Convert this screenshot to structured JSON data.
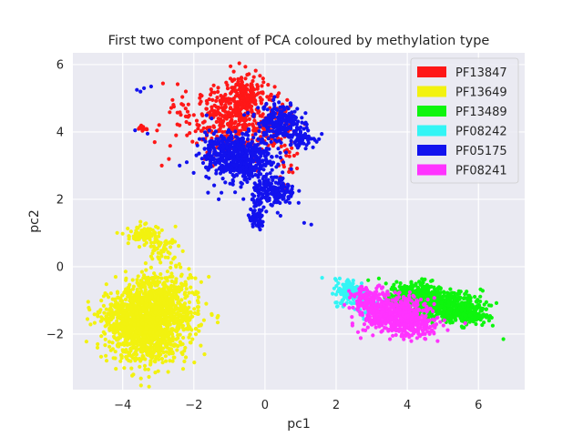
{
  "chart_data": {
    "type": "scatter",
    "title": "First two component of PCA coloured by methylation type",
    "xlabel": "pc1",
    "ylabel": "pc2",
    "xlim": [
      -5.4,
      7.3
    ],
    "ylim": [
      -3.65,
      6.35
    ],
    "xticks": [
      -4,
      -2,
      0,
      2,
      4,
      6
    ],
    "yticks": [
      -2,
      0,
      2,
      4,
      6
    ],
    "x_tick_labels": [
      "−4",
      "−2",
      "0",
      "2",
      "4",
      "6"
    ],
    "y_tick_labels": [
      "−2",
      "0",
      "2",
      "4",
      "6"
    ],
    "grid": true,
    "legend_position": "top-right",
    "series": [
      {
        "name": "PF13847",
        "color": "#ff1717",
        "clusters": [
          {
            "cx": -1.0,
            "cy": 4.3,
            "sx": 0.45,
            "sy": 0.55,
            "n": 320
          },
          {
            "cx": -0.6,
            "cy": 5.0,
            "sx": 0.3,
            "sy": 0.35,
            "n": 180
          },
          {
            "cx": 0.2,
            "cy": 4.2,
            "sx": 0.35,
            "sy": 0.45,
            "n": 120
          },
          {
            "cx": -2.2,
            "cy": 4.3,
            "sx": 0.45,
            "sy": 0.4,
            "n": 35
          },
          {
            "cx": -3.5,
            "cy": 4.1,
            "sx": 0.1,
            "sy": 0.05,
            "n": 10
          },
          {
            "cx": 0.6,
            "cy": 3.0,
            "sx": 0.15,
            "sy": 0.3,
            "n": 20
          }
        ],
        "points": [
          [
            -2.9,
            3.0
          ],
          [
            -2.7,
            3.2
          ],
          [
            -3.1,
            3.7
          ],
          [
            -2.5,
            3.9
          ],
          [
            -2.3,
            4.8
          ],
          [
            -1.8,
            4.9
          ],
          [
            -1.7,
            3.2
          ],
          [
            -0.5,
            5.7
          ],
          [
            0.7,
            2.9
          ],
          [
            0.6,
            3.3
          ],
          [
            -2.4,
            4.2
          ],
          [
            -2.0,
            4.5
          ]
        ]
      },
      {
        "name": "PF13649",
        "color": "#f2f20f",
        "clusters": [
          {
            "cx": -3.3,
            "cy": -1.7,
            "sx": 0.55,
            "sy": 0.55,
            "n": 1300
          },
          {
            "cx": -2.9,
            "cy": -0.9,
            "sx": 0.4,
            "sy": 0.5,
            "n": 300
          },
          {
            "cx": -3.4,
            "cy": 0.95,
            "sx": 0.25,
            "sy": 0.15,
            "n": 90
          },
          {
            "cx": -2.9,
            "cy": 0.55,
            "sx": 0.2,
            "sy": 0.15,
            "n": 40
          },
          {
            "cx": -4.1,
            "cy": -1.5,
            "sx": 0.3,
            "sy": 0.3,
            "n": 80
          },
          {
            "cx": -2.1,
            "cy": -1.4,
            "sx": 0.3,
            "sy": 0.3,
            "n": 40
          }
        ],
        "points": [
          [
            -4.6,
            -1.5
          ],
          [
            -4.7,
            -1.4
          ],
          [
            -4.4,
            -0.9
          ],
          [
            -4.2,
            -0.3
          ],
          [
            -2.5,
            0.0
          ],
          [
            -1.9,
            -1.4
          ],
          [
            -1.5,
            -1.4
          ],
          [
            -1.7,
            -2.6
          ],
          [
            -3.0,
            -3.1
          ],
          [
            -3.7,
            -3.2
          ]
        ]
      },
      {
        "name": "PF13489",
        "color": "#0ef50e",
        "clusters": [
          {
            "cx": 5.0,
            "cy": -1.15,
            "sx": 0.55,
            "sy": 0.2,
            "n": 500
          },
          {
            "cx": 4.2,
            "cy": -0.85,
            "sx": 0.35,
            "sy": 0.2,
            "n": 260
          },
          {
            "cx": 5.7,
            "cy": -1.45,
            "sx": 0.3,
            "sy": 0.15,
            "n": 140
          }
        ],
        "points": [
          [
            6.7,
            -2.15
          ],
          [
            6.3,
            -1.6
          ],
          [
            6.4,
            -1.75
          ],
          [
            3.2,
            -0.35
          ],
          [
            2.9,
            -0.4
          ],
          [
            3.7,
            -0.45
          ],
          [
            3.4,
            -0.5
          ]
        ]
      },
      {
        "name": "PF08242",
        "color": "#33f5f5",
        "clusters": [
          {
            "cx": 2.45,
            "cy": -0.75,
            "sx": 0.25,
            "sy": 0.2,
            "n": 160
          },
          {
            "cx": 2.9,
            "cy": -1.15,
            "sx": 0.2,
            "sy": 0.15,
            "n": 50
          }
        ],
        "points": [
          [
            1.9,
            -0.8
          ],
          [
            2.0,
            -0.4
          ],
          [
            3.1,
            -1.3
          ],
          [
            2.1,
            -0.35
          ]
        ]
      },
      {
        "name": "PF05175",
        "color": "#1212ee",
        "clusters": [
          {
            "cx": -0.75,
            "cy": 3.25,
            "sx": 0.45,
            "sy": 0.35,
            "n": 520
          },
          {
            "cx": 0.4,
            "cy": 4.3,
            "sx": 0.3,
            "sy": 0.3,
            "n": 220
          },
          {
            "cx": 0.25,
            "cy": 2.2,
            "sx": 0.3,
            "sy": 0.22,
            "n": 200
          },
          {
            "cx": -0.25,
            "cy": 1.4,
            "sx": 0.12,
            "sy": 0.15,
            "n": 60
          },
          {
            "cx": -1.3,
            "cy": 3.4,
            "sx": 0.25,
            "sy": 0.3,
            "n": 80
          },
          {
            "cx": 1.0,
            "cy": 3.85,
            "sx": 0.2,
            "sy": 0.15,
            "n": 60
          }
        ],
        "points": [
          [
            -3.6,
            5.25
          ],
          [
            -3.5,
            5.2
          ],
          [
            -3.4,
            5.3
          ],
          [
            -3.2,
            5.35
          ],
          [
            -3.65,
            4.05
          ],
          [
            -3.3,
            3.95
          ],
          [
            -2.4,
            3.0
          ],
          [
            -2.2,
            3.1
          ],
          [
            -1.9,
            3.6
          ],
          [
            -1.6,
            2.2
          ],
          [
            1.3,
            1.25
          ],
          [
            1.1,
            1.3
          ],
          [
            -1.5,
            4.4
          ],
          [
            -1.3,
            2.0
          ],
          [
            1.3,
            3.8
          ]
        ]
      },
      {
        "name": "PF08241",
        "color": "#ff33ff",
        "clusters": [
          {
            "cx": 3.7,
            "cy": -1.45,
            "sx": 0.45,
            "sy": 0.25,
            "n": 500
          },
          {
            "cx": 3.0,
            "cy": -1.0,
            "sx": 0.3,
            "sy": 0.2,
            "n": 140
          },
          {
            "cx": 4.3,
            "cy": -1.8,
            "sx": 0.3,
            "sy": 0.15,
            "n": 100
          }
        ],
        "points": [
          [
            4.5,
            -2.0
          ],
          [
            2.6,
            -0.8
          ],
          [
            2.7,
            -0.6
          ]
        ]
      }
    ]
  }
}
